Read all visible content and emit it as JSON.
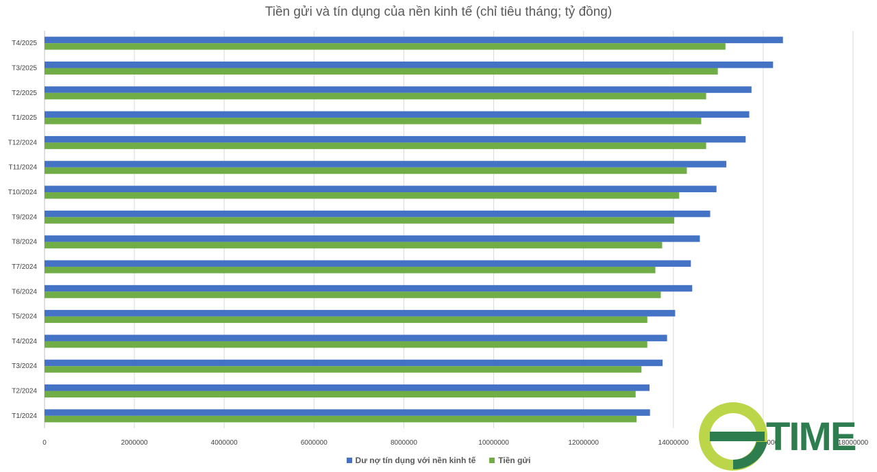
{
  "chart_data": {
    "type": "bar",
    "orientation": "horizontal",
    "title": "Tiền gửi và tín dụng của nền kinh tế (chỉ tiêu tháng; tỷ đồng)",
    "categories": [
      "T1/2024",
      "T2/2024",
      "T3/2024",
      "T4/2024",
      "T5/2024",
      "T6/2024",
      "T7/2024",
      "T8/2024",
      "T9/2024",
      "T10/2024",
      "T11/2024",
      "T12/2024",
      "T1/2025",
      "T2/2025",
      "T3/2025",
      "T4/2025"
    ],
    "series": [
      {
        "name": "Dư nợ tín dụng với nền kinh tế",
        "color": "#4472C4",
        "values": [
          13480000,
          13470000,
          13760000,
          13860000,
          14040000,
          14420000,
          14390000,
          14590000,
          14820000,
          14960000,
          15180000,
          15610000,
          15690000,
          15740000,
          16220000,
          16440000
        ]
      },
      {
        "name": "Tiền gửi",
        "color": "#70AD47",
        "values": [
          13180000,
          13160000,
          13290000,
          13420000,
          13420000,
          13720000,
          13600000,
          13750000,
          14020000,
          14130000,
          14300000,
          14730000,
          14620000,
          14730000,
          14990000,
          15160000
        ]
      }
    ],
    "xlim": [
      0,
      18000000
    ],
    "x_ticks": [
      "0",
      "2000000",
      "4000000",
      "6000000",
      "8000000",
      "10000000",
      "12000000",
      "14000000",
      "16000000",
      "18000000"
    ],
    "grid": "vertical",
    "legend": "bottom"
  },
  "watermark": {
    "text": "TIME",
    "colors": [
      "#2E7D4F",
      "#B4D235"
    ]
  }
}
